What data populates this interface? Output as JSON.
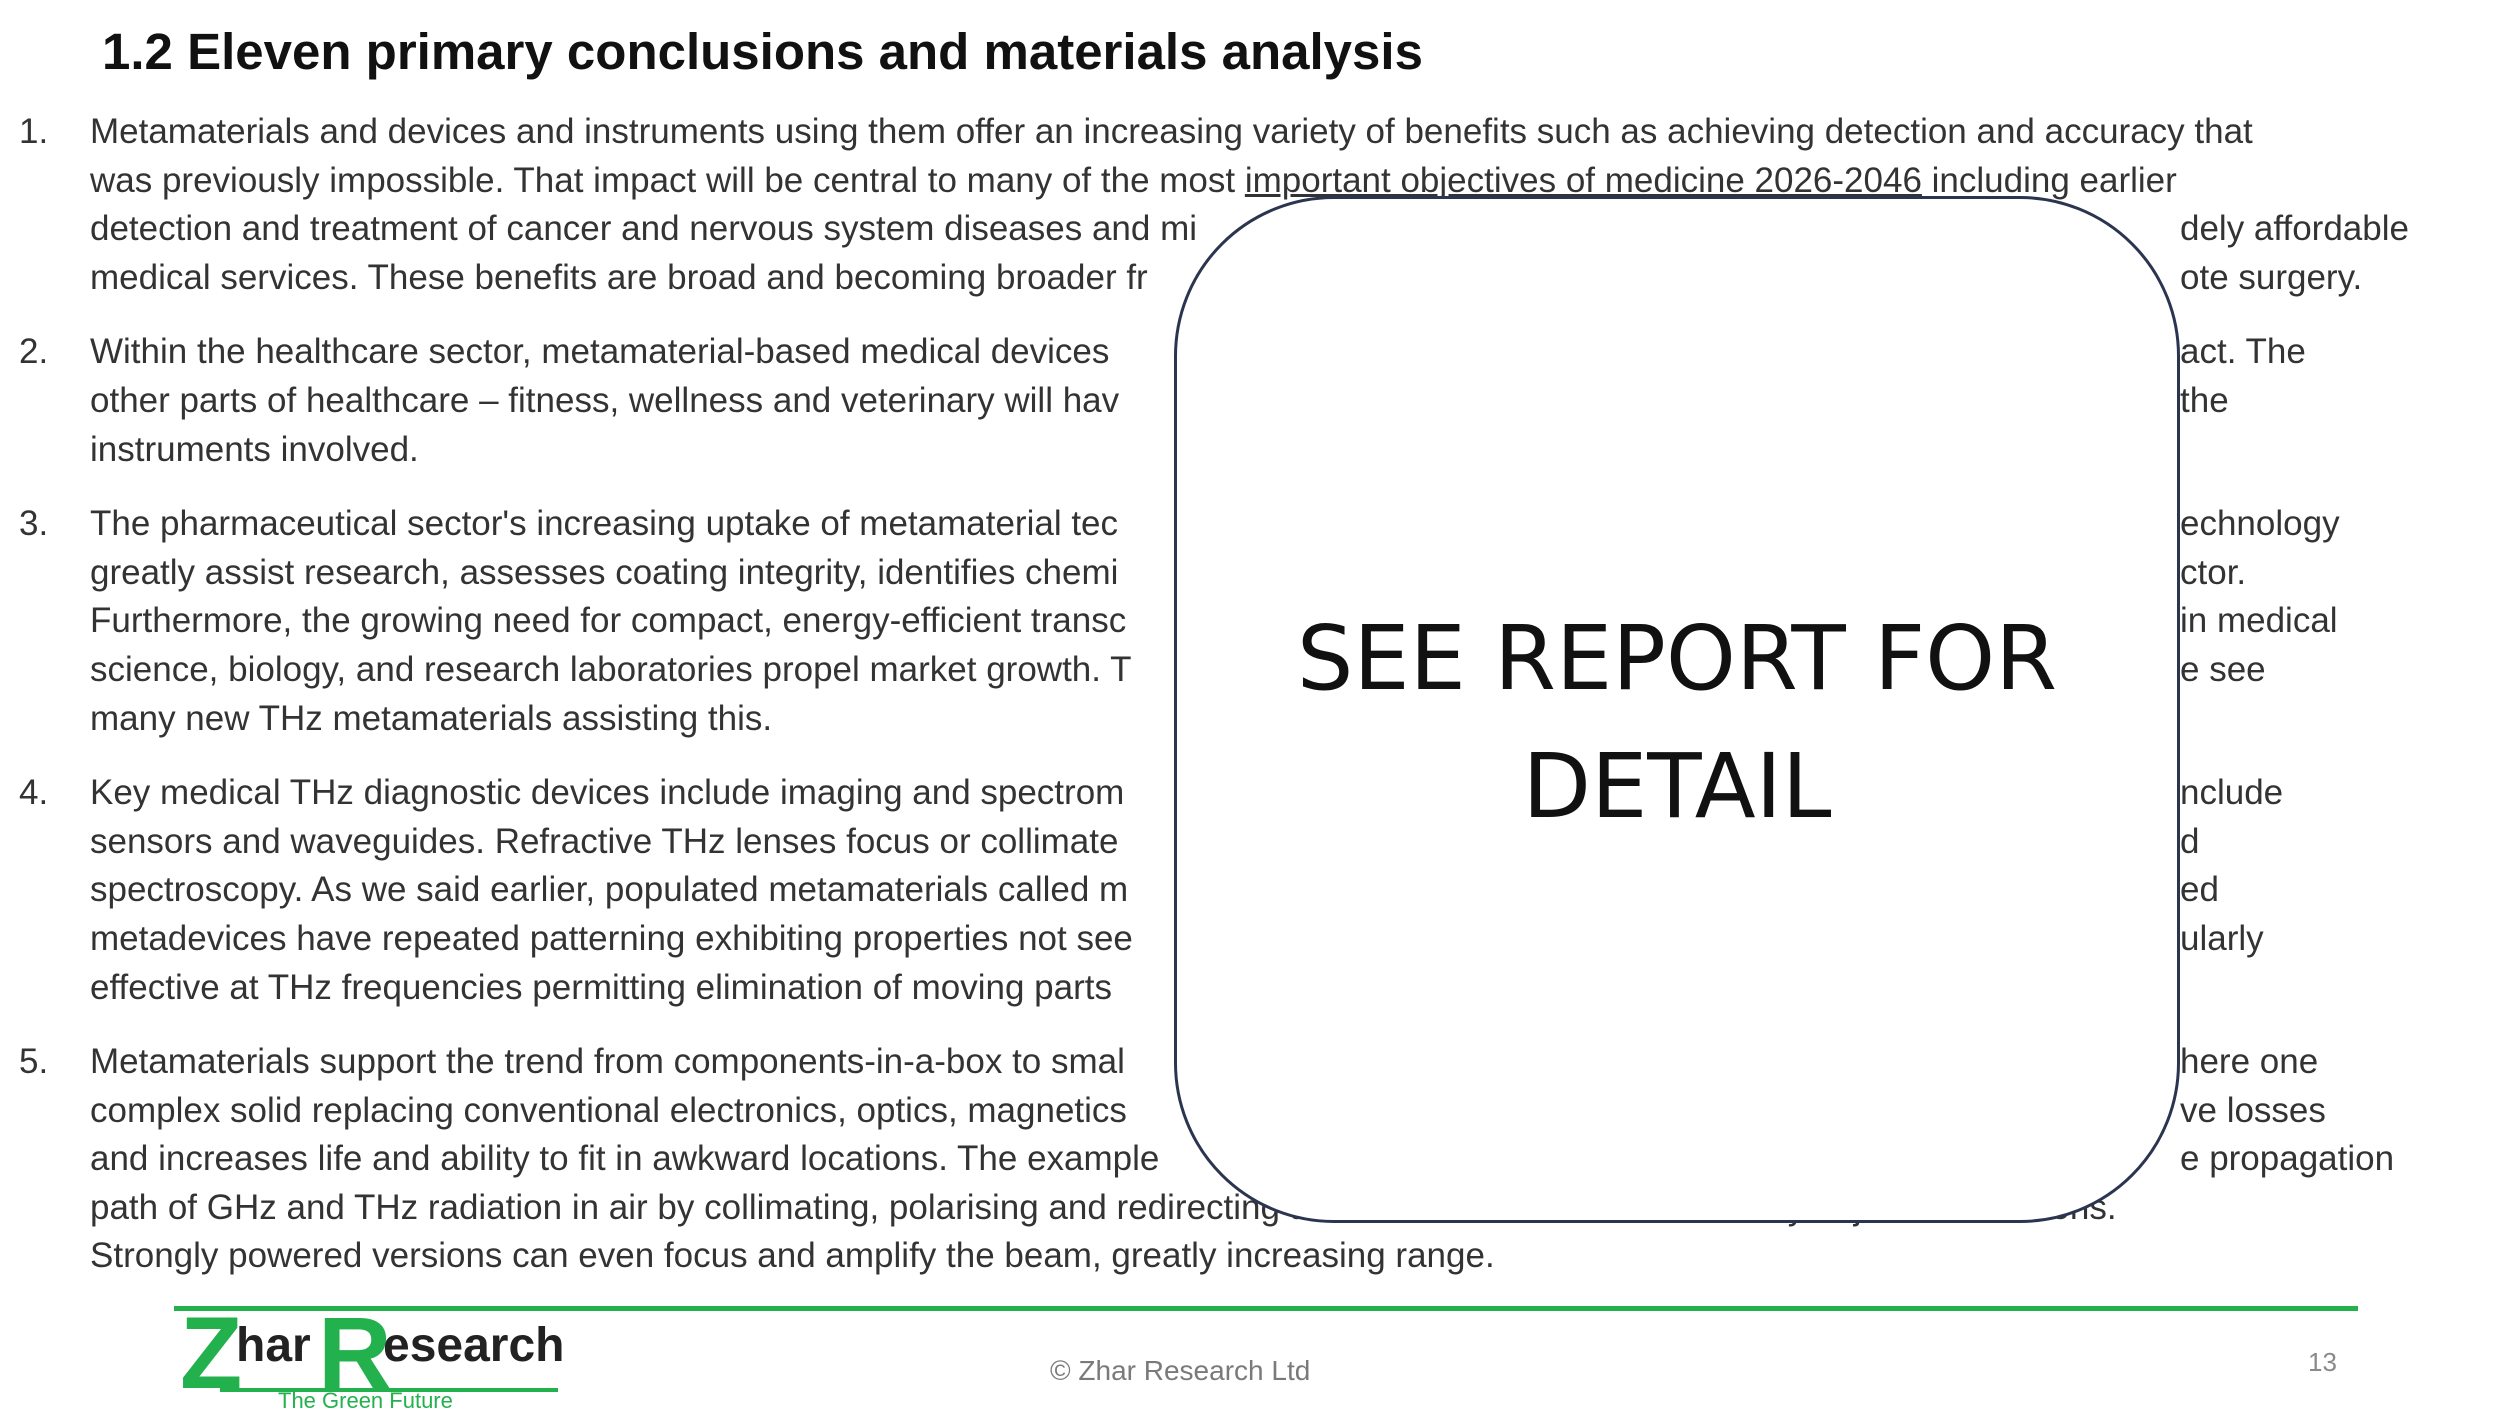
{
  "title": "1.2 Eleven primary conclusions and materials analysis",
  "items": [
    {
      "number": "1.",
      "lines": [
        "Metamaterials and devices and instruments using them offer an increasing variety of benefits such as achieving detection and accuracy that",
        "was previously impossible. That impact will be central to many of the most important objectives of medicine 2026-2046 including earlier",
        "detection and treatment of cancer and nervous system diseases and mi",
        "medical services. These benefits are broad and becoming broader fr"
      ],
      "line_tails": [
        "",
        "",
        "dely affordable",
        "ote surgery."
      ],
      "underline": "important objectives of medicine 2026-2046"
    },
    {
      "number": "2.",
      "lines": [
        "Within the healthcare sector, metamaterial-based medical devices",
        "other parts of healthcare – fitness, wellness and veterinary will hav",
        "instruments involved."
      ],
      "line_tails": [
        "act. The",
        "the",
        ""
      ]
    },
    {
      "number": "3.",
      "lines": [
        "The pharmaceutical sector's increasing uptake of metamaterial  tec",
        "greatly assist research, assesses coating integrity, identifies chemi",
        "Furthermore, the growing need for compact, energy-efficient transc",
        "science, biology, and research laboratories propel market growth. T",
        "many new THz metamaterials assisting this."
      ],
      "line_tails": [
        "echnology",
        "ctor.",
        "in medical",
        "e see",
        ""
      ]
    },
    {
      "number": "4.",
      "lines": [
        "Key medical THz diagnostic devices include imaging and spectrom",
        "sensors and waveguides. Refractive THz lenses focus or collimate",
        "spectroscopy. As we said earlier, populated metamaterials called m",
        "metadevices have repeated patterning exhibiting properties not see",
        "effective at THz frequencies permitting elimination of moving parts"
      ],
      "line_tails": [
        "nclude",
        "d",
        "ed",
        "ularly",
        ""
      ]
    },
    {
      "number": "5.",
      "lines": [
        "Metamaterials support the trend from components-in-a-box to smal",
        "complex solid replacing conventional electronics, optics, magnetics",
        "and increases life and ability to fit in awkward locations. The example",
        "path of GHz and THz radiation in air by collimating, polarising and redirecting around obstacles in electronically adjusted directions.",
        "Strongly powered versions can even focus and amplify the beam, greatly increasing range."
      ],
      "line_tails": [
        "here one",
        "ve losses",
        "e propagation",
        "",
        ""
      ]
    }
  ],
  "overlay": {
    "line1": "SEE REPORT FOR",
    "line2": "DETAIL"
  },
  "footer": {
    "logo_z": "Z",
    "logo_har": "har",
    "logo_r": "R",
    "logo_esearch": "esearch",
    "logo_tagline": "The Green Future",
    "copyright": "© Zhar Research Ltd",
    "page_number": "13"
  },
  "colors": {
    "accent_green": "#23b14d",
    "overlay_border": "#2b3550",
    "body_text": "#333333"
  }
}
